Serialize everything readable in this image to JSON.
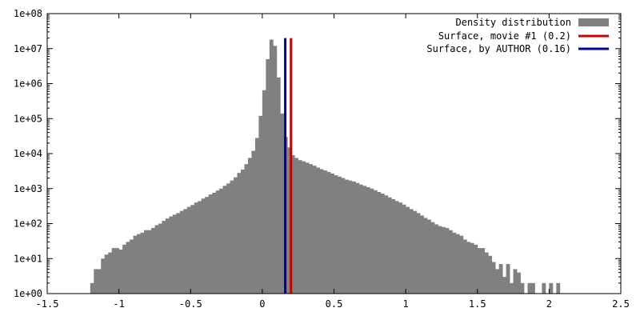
{
  "chart_data": {
    "type": "bar",
    "title": "",
    "xlabel": "",
    "ylabel": "",
    "x_scale": "linear",
    "y_scale": "log",
    "xlim": [
      -1.5,
      2.5
    ],
    "ylim": [
      1,
      100000000
    ],
    "x_ticks": [
      "-1.5",
      "-1",
      "-0.5",
      "0",
      "0.5",
      "1",
      "1.5",
      "2",
      "2.5"
    ],
    "y_ticks": [
      "1e+00",
      "1e+01",
      "1e+02",
      "1e+03",
      "1e+04",
      "1e+05",
      "1e+06",
      "1e+07",
      "1e+08"
    ],
    "grid": false,
    "legend_position": "top-right",
    "series": [
      {
        "name": "Density distribution",
        "kind": "histogram",
        "color": "#808080",
        "bin_width": 0.025,
        "bins": [
          [
            -1.2,
            2
          ],
          [
            -1.175,
            5
          ],
          [
            -1.15,
            5
          ],
          [
            -1.125,
            10
          ],
          [
            -1.1,
            13
          ],
          [
            -1.075,
            15
          ],
          [
            -1.05,
            20
          ],
          [
            -1.025,
            20
          ],
          [
            -1.0,
            18
          ],
          [
            -0.975,
            25
          ],
          [
            -0.95,
            30
          ],
          [
            -0.925,
            35
          ],
          [
            -0.9,
            45
          ],
          [
            -0.875,
            50
          ],
          [
            -0.85,
            55
          ],
          [
            -0.825,
            65
          ],
          [
            -0.8,
            65
          ],
          [
            -0.775,
            75
          ],
          [
            -0.75,
            90
          ],
          [
            -0.725,
            100
          ],
          [
            -0.7,
            120
          ],
          [
            -0.675,
            140
          ],
          [
            -0.65,
            160
          ],
          [
            -0.625,
            180
          ],
          [
            -0.6,
            200
          ],
          [
            -0.575,
            230
          ],
          [
            -0.55,
            260
          ],
          [
            -0.525,
            300
          ],
          [
            -0.5,
            340
          ],
          [
            -0.475,
            400
          ],
          [
            -0.45,
            440
          ],
          [
            -0.425,
            520
          ],
          [
            -0.4,
            580
          ],
          [
            -0.375,
            680
          ],
          [
            -0.35,
            760
          ],
          [
            -0.325,
            880
          ],
          [
            -0.3,
            1000
          ],
          [
            -0.275,
            1200
          ],
          [
            -0.25,
            1400
          ],
          [
            -0.225,
            1700
          ],
          [
            -0.2,
            2100
          ],
          [
            -0.175,
            2800
          ],
          [
            -0.15,
            3500
          ],
          [
            -0.125,
            5000
          ],
          [
            -0.1,
            7500
          ],
          [
            -0.075,
            12000
          ],
          [
            -0.05,
            28000
          ],
          [
            -0.025,
            120000
          ],
          [
            0.0,
            650000
          ],
          [
            0.025,
            5000000
          ],
          [
            0.05,
            18000000
          ],
          [
            0.075,
            12000000
          ],
          [
            0.1,
            1500000
          ],
          [
            0.125,
            140000
          ],
          [
            0.15,
            30000
          ],
          [
            0.175,
            15000
          ],
          [
            0.2,
            9000
          ],
          [
            0.225,
            7500
          ],
          [
            0.25,
            6500
          ],
          [
            0.275,
            6000
          ],
          [
            0.3,
            5500
          ],
          [
            0.325,
            5000
          ],
          [
            0.35,
            4500
          ],
          [
            0.375,
            4000
          ],
          [
            0.4,
            3600
          ],
          [
            0.425,
            3300
          ],
          [
            0.45,
            3000
          ],
          [
            0.475,
            2700
          ],
          [
            0.5,
            2400
          ],
          [
            0.525,
            2200
          ],
          [
            0.55,
            2000
          ],
          [
            0.575,
            1800
          ],
          [
            0.6,
            1700
          ],
          [
            0.625,
            1600
          ],
          [
            0.65,
            1450
          ],
          [
            0.675,
            1300
          ],
          [
            0.7,
            1200
          ],
          [
            0.725,
            1100
          ],
          [
            0.75,
            1000
          ],
          [
            0.775,
            900
          ],
          [
            0.8,
            800
          ],
          [
            0.825,
            720
          ],
          [
            0.85,
            640
          ],
          [
            0.875,
            560
          ],
          [
            0.9,
            500
          ],
          [
            0.925,
            440
          ],
          [
            0.95,
            400
          ],
          [
            0.975,
            350
          ],
          [
            1.0,
            300
          ],
          [
            1.025,
            260
          ],
          [
            1.05,
            230
          ],
          [
            1.075,
            200
          ],
          [
            1.1,
            170
          ],
          [
            1.125,
            145
          ],
          [
            1.15,
            130
          ],
          [
            1.175,
            110
          ],
          [
            1.2,
            95
          ],
          [
            1.225,
            85
          ],
          [
            1.25,
            80
          ],
          [
            1.275,
            75
          ],
          [
            1.3,
            65
          ],
          [
            1.325,
            55
          ],
          [
            1.35,
            50
          ],
          [
            1.375,
            45
          ],
          [
            1.4,
            35
          ],
          [
            1.425,
            30
          ],
          [
            1.45,
            28
          ],
          [
            1.475,
            25
          ],
          [
            1.5,
            20
          ],
          [
            1.525,
            20
          ],
          [
            1.55,
            15
          ],
          [
            1.575,
            12
          ],
          [
            1.6,
            8
          ],
          [
            1.625,
            5
          ],
          [
            1.65,
            7
          ],
          [
            1.675,
            3
          ],
          [
            1.7,
            7
          ],
          [
            1.725,
            2
          ],
          [
            1.75,
            5
          ],
          [
            1.775,
            4
          ],
          [
            1.8,
            2
          ],
          [
            1.825,
            0
          ],
          [
            1.85,
            2
          ],
          [
            1.875,
            2
          ],
          [
            1.9,
            0
          ],
          [
            1.925,
            0
          ],
          [
            1.95,
            2
          ],
          [
            1.975,
            0
          ],
          [
            2.0,
            2
          ],
          [
            2.025,
            0
          ],
          [
            2.05,
            2
          ]
        ]
      },
      {
        "name": "Surface, movie #1 (0.2)",
        "kind": "vline",
        "x": 0.2,
        "color": "#cc0000"
      },
      {
        "name": "Surface, by AUTHOR (0.16)",
        "kind": "vline",
        "x": 0.16,
        "color": "#0000aa"
      }
    ]
  }
}
